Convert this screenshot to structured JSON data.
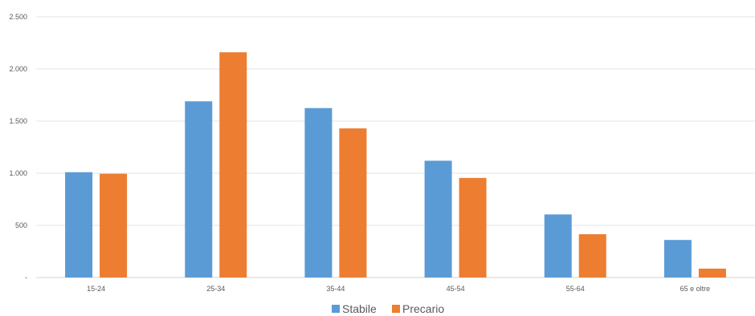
{
  "chart_data": {
    "type": "bar",
    "categories": [
      "15-24",
      "25-34",
      "35-44",
      "45-54",
      "55-64",
      "65 e oltre"
    ],
    "series": [
      {
        "name": "Stabile",
        "color": "#5B9BD5",
        "values": [
          1010,
          1690,
          1625,
          1120,
          605,
          360
        ]
      },
      {
        "name": "Precario",
        "color": "#ED7D31",
        "values": [
          995,
          2160,
          1430,
          955,
          415,
          85
        ]
      }
    ],
    "y_ticks": [
      "-",
      "500",
      "1.000",
      "1.500",
      "2.000",
      "2.500"
    ],
    "ylim": [
      0,
      2500
    ],
    "grid": true,
    "legend_position": "bottom-center"
  }
}
